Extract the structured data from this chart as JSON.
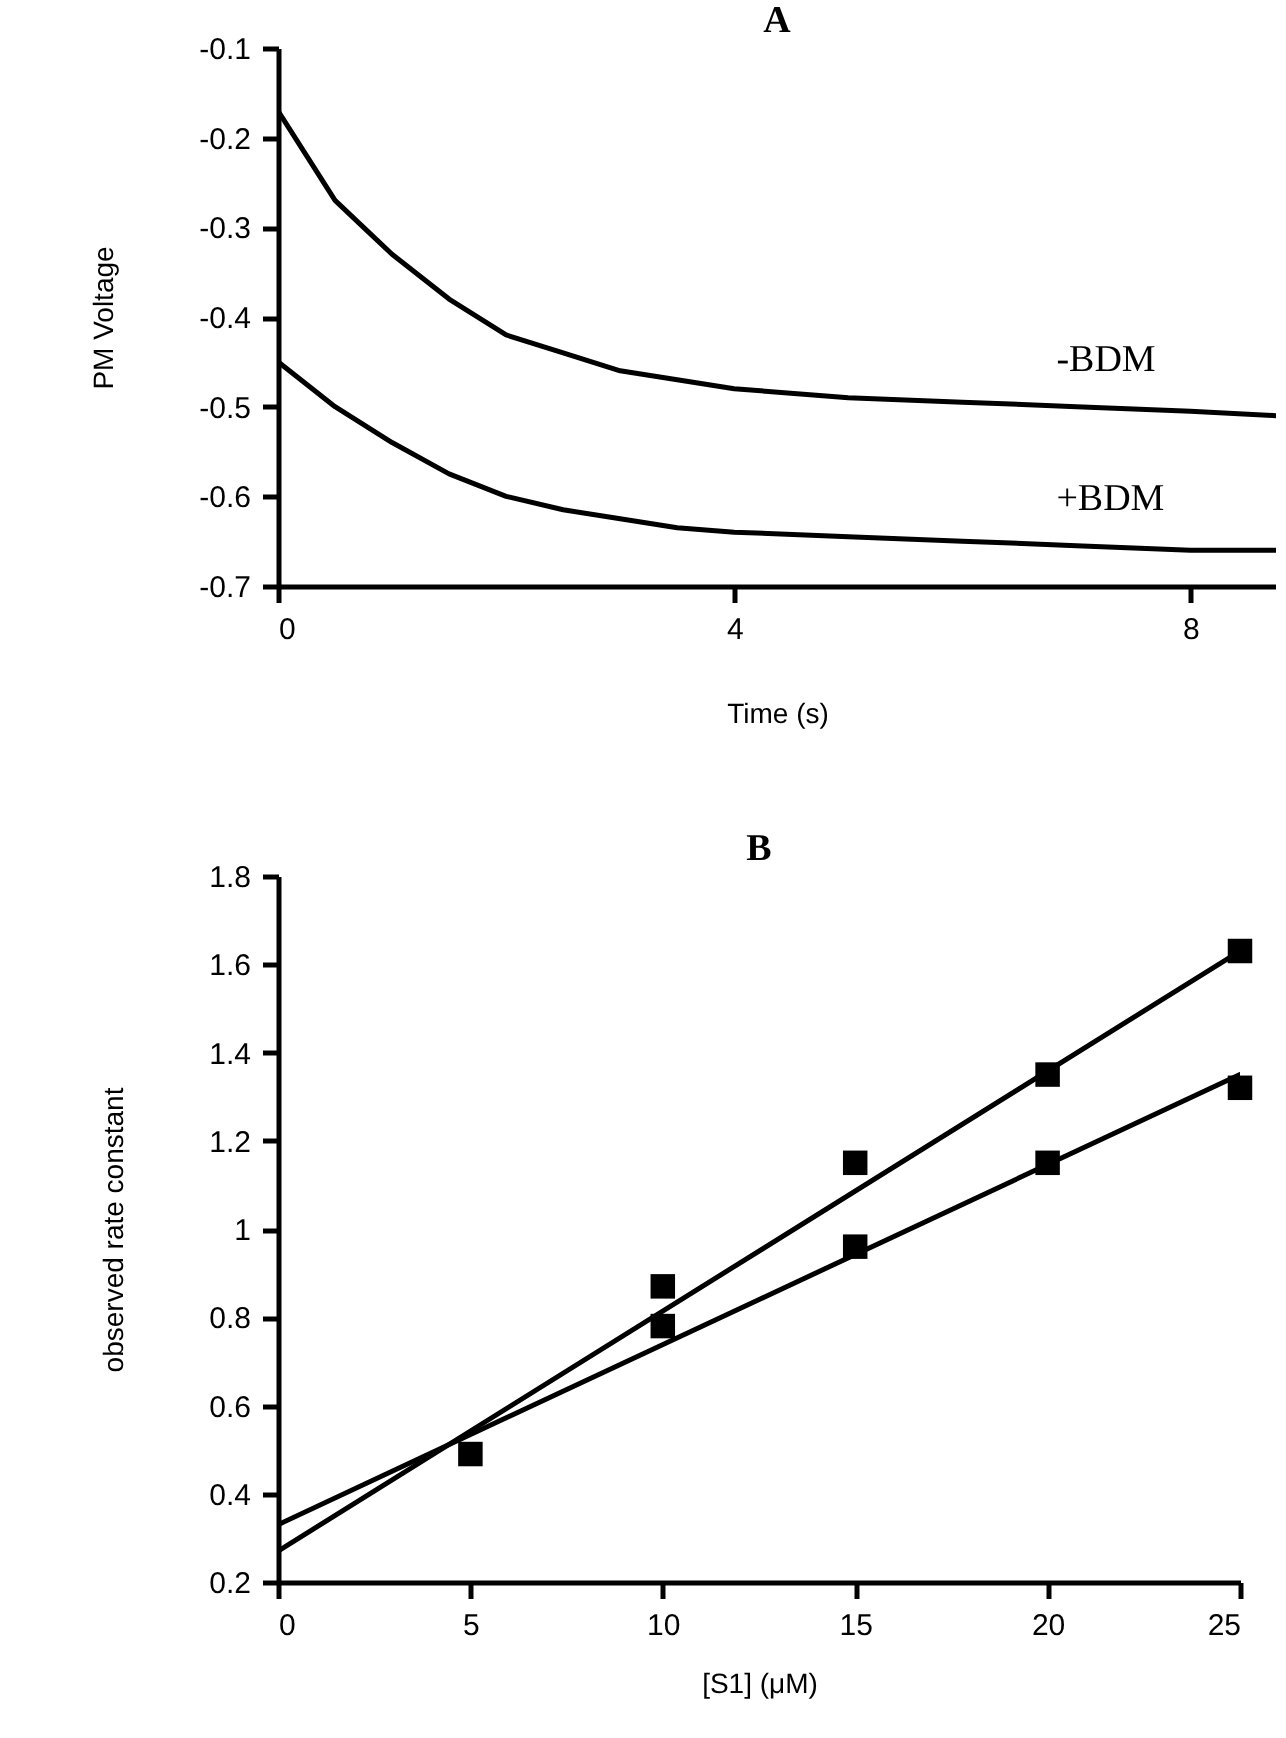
{
  "chart_data": [
    {
      "type": "line",
      "title": "A",
      "xlabel": "Time (s)",
      "ylabel": "PM Voltage",
      "xlim": [
        0,
        8.75
      ],
      "xticks": [
        0,
        4,
        8
      ],
      "ylim": [
        -0.7,
        -0.1
      ],
      "yticks": [
        -0.7,
        -0.6,
        -0.5,
        -0.4,
        -0.3,
        -0.2,
        -0.1
      ],
      "grid": false,
      "line_style": "solid",
      "series": [
        {
          "name": "-BDM",
          "color": "#000000",
          "x": [
            0,
            0.25,
            0.5,
            0.75,
            1,
            1.5,
            2,
            2.5,
            3,
            3.5,
            4,
            5,
            6,
            7,
            8,
            8.75
          ],
          "values": [
            -0.17,
            -0.22,
            -0.27,
            -0.3,
            -0.33,
            -0.38,
            -0.42,
            -0.44,
            -0.46,
            -0.47,
            -0.48,
            -0.49,
            -0.495,
            -0.5,
            -0.505,
            -0.51
          ]
        },
        {
          "name": "+BDM",
          "color": "#000000",
          "x": [
            0,
            0.25,
            0.5,
            0.75,
            1,
            1.5,
            2,
            2.5,
            3,
            3.5,
            4,
            5,
            6,
            7,
            8,
            8.75
          ],
          "values": [
            -0.45,
            -0.475,
            -0.5,
            -0.52,
            -0.54,
            -0.575,
            -0.6,
            -0.615,
            -0.625,
            -0.635,
            -0.64,
            -0.645,
            -0.65,
            -0.655,
            -0.66,
            -0.66
          ]
        }
      ]
    },
    {
      "type": "scatter",
      "title": "B",
      "xlabel": "[S1] (μM)",
      "ylabel": "observed rate constant",
      "xlim": [
        0,
        25
      ],
      "xticks": [
        0,
        5,
        10,
        15,
        20,
        25
      ],
      "ylim": [
        0.2,
        1.8
      ],
      "yticks": [
        0.2,
        0.4,
        0.6,
        0.8,
        1,
        1.2,
        1.4,
        1.6,
        1.8
      ],
      "grid": false,
      "series": [
        {
          "marker": "square",
          "color": "#000000",
          "x": [
            5,
            10,
            15,
            20,
            25
          ],
          "values": [
            0.49,
            0.87,
            1.15,
            1.35,
            1.63
          ]
        },
        {
          "marker": "square",
          "color": "#000000",
          "x": [
            10,
            15,
            20,
            25
          ],
          "values": [
            0.78,
            0.96,
            1.15,
            1.32
          ]
        },
        {
          "type": "line",
          "color": "#000000",
          "x": [
            0,
            25
          ],
          "values": [
            0.27,
            1.63
          ]
        },
        {
          "type": "line",
          "color": "#000000",
          "x": [
            0,
            25
          ],
          "values": [
            0.33,
            1.35
          ]
        }
      ]
    }
  ]
}
